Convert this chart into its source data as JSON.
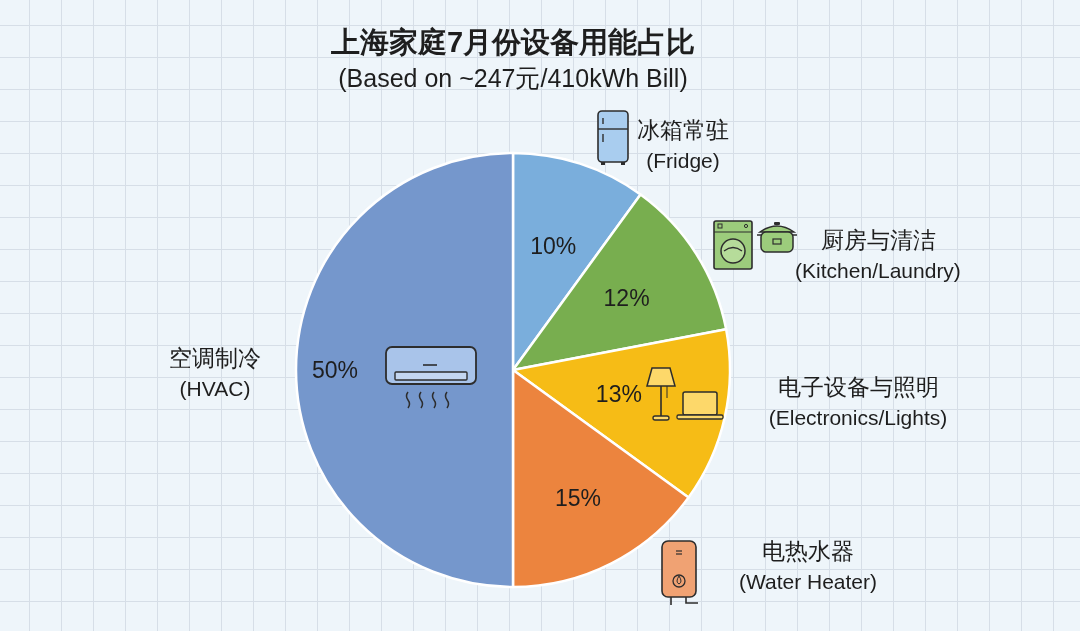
{
  "chart_data": {
    "type": "pie",
    "title": "上海家庭7月份设备用能占比",
    "subtitle": "(Based on ~247元/410kWh Bill)",
    "categories": [
      "冰箱常驻\n(Fridge)",
      "厨房与清洁\n(Kitchen/Laundry)",
      "电子设备与照明\n(Electronics/Lights)",
      "电热水器\n(Water Heater)",
      "空调制冷\n(HVAC)"
    ],
    "values": [
      10,
      12,
      13,
      15,
      50
    ],
    "colors": [
      "#7aaedc",
      "#78ae4f",
      "#f6bc16",
      "#ec843e",
      "#7597cc"
    ],
    "value_labels": [
      "10%",
      "12%",
      "13%",
      "15%",
      "50%"
    ]
  }
}
